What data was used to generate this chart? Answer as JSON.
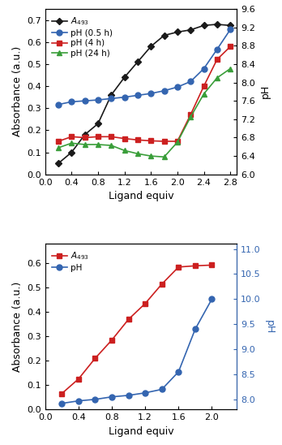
{
  "top": {
    "abs_x": [
      0.2,
      0.4,
      0.6,
      0.8,
      1.0,
      1.2,
      1.4,
      1.6,
      1.8,
      2.0,
      2.2,
      2.4,
      2.6,
      2.8
    ],
    "abs_y": [
      0.05,
      0.1,
      0.18,
      0.23,
      0.36,
      0.44,
      0.51,
      0.58,
      0.63,
      0.645,
      0.655,
      0.675,
      0.68,
      0.675
    ],
    "ph05_x": [
      0.2,
      0.4,
      0.6,
      0.8,
      1.0,
      1.2,
      1.4,
      1.6,
      1.8,
      2.0,
      2.2,
      2.4,
      2.6,
      2.8
    ],
    "ph05_y": [
      7.52,
      7.58,
      7.6,
      7.62,
      7.65,
      7.68,
      7.72,
      7.76,
      7.82,
      7.9,
      8.02,
      8.3,
      8.72,
      9.15
    ],
    "ph4_x": [
      0.2,
      0.4,
      0.6,
      0.8,
      1.0,
      1.2,
      1.4,
      1.6,
      1.8,
      2.0,
      2.2,
      2.4,
      2.6,
      2.8
    ],
    "ph4_y": [
      6.72,
      6.82,
      6.8,
      6.82,
      6.82,
      6.78,
      6.75,
      6.73,
      6.72,
      6.72,
      7.3,
      7.92,
      8.5,
      8.78
    ],
    "ph24_x": [
      0.2,
      0.4,
      0.6,
      0.8,
      1.0,
      1.2,
      1.4,
      1.6,
      1.8,
      2.0,
      2.2,
      2.4,
      2.6,
      2.8
    ],
    "ph24_y": [
      6.58,
      6.68,
      6.65,
      6.65,
      6.63,
      6.52,
      6.45,
      6.4,
      6.38,
      6.7,
      7.25,
      7.75,
      8.1,
      8.3
    ],
    "abs_color": "#1a1a1a",
    "ph05_color": "#3465b0",
    "ph4_color": "#cc2020",
    "ph24_color": "#3a9e3a",
    "right_label_color": "#000000",
    "xlabel": "Ligand equiv",
    "ylabel_left": "Absorbance (a.u.)",
    "ylabel_right": "pH",
    "xlim": [
      0.0,
      2.9
    ],
    "ylim_left": [
      0.0,
      0.75
    ],
    "ylim_right": [
      6.0,
      9.6
    ],
    "xticks": [
      0.0,
      0.4,
      0.8,
      1.2,
      1.6,
      2.0,
      2.4,
      2.8
    ],
    "yticks_left": [
      0.0,
      0.1,
      0.2,
      0.3,
      0.4,
      0.5,
      0.6,
      0.7
    ],
    "yticks_right": [
      6.0,
      6.4,
      6.8,
      7.2,
      7.6,
      8.0,
      8.4,
      8.8,
      9.2,
      9.6
    ],
    "legend_labels": [
      "$A_{493}$",
      "pH (0.5 h)",
      "pH (4 h)",
      "pH (24 h)"
    ]
  },
  "bottom": {
    "abs_x": [
      0.2,
      0.4,
      0.6,
      0.8,
      1.0,
      1.2,
      1.4,
      1.6,
      1.8,
      2.0
    ],
    "abs_y": [
      0.065,
      0.125,
      0.21,
      0.285,
      0.37,
      0.435,
      0.515,
      0.585,
      0.59,
      0.593
    ],
    "ph_x": [
      0.2,
      0.4,
      0.6,
      0.8,
      1.0,
      1.2,
      1.4,
      1.6,
      1.8,
      2.0
    ],
    "ph_y": [
      7.92,
      7.97,
      8.0,
      8.05,
      8.08,
      8.13,
      8.2,
      8.55,
      9.4,
      10.0
    ],
    "abs_color": "#cc2020",
    "ph_color": "#3465b0",
    "right_label_color": "#3465b0",
    "xlabel": "Ligand equiv",
    "ylabel_left": "Absorbance (a.u.)",
    "ylabel_right": "pH",
    "xlim": [
      0.0,
      2.3
    ],
    "ylim_left": [
      0.0,
      0.68
    ],
    "ylim_right": [
      7.8,
      11.1
    ],
    "xticks": [
      0.0,
      0.4,
      0.8,
      1.2,
      1.6,
      2.0
    ],
    "yticks_left": [
      0.0,
      0.1,
      0.2,
      0.3,
      0.4,
      0.5,
      0.6
    ],
    "yticks_right": [
      8.0,
      8.5,
      9.0,
      9.5,
      10.0,
      10.5,
      11.0
    ],
    "legend_labels": [
      "$A_{493}$",
      "pH"
    ]
  },
  "fig_width": 3.48,
  "fig_height": 5.48,
  "dpi": 100
}
